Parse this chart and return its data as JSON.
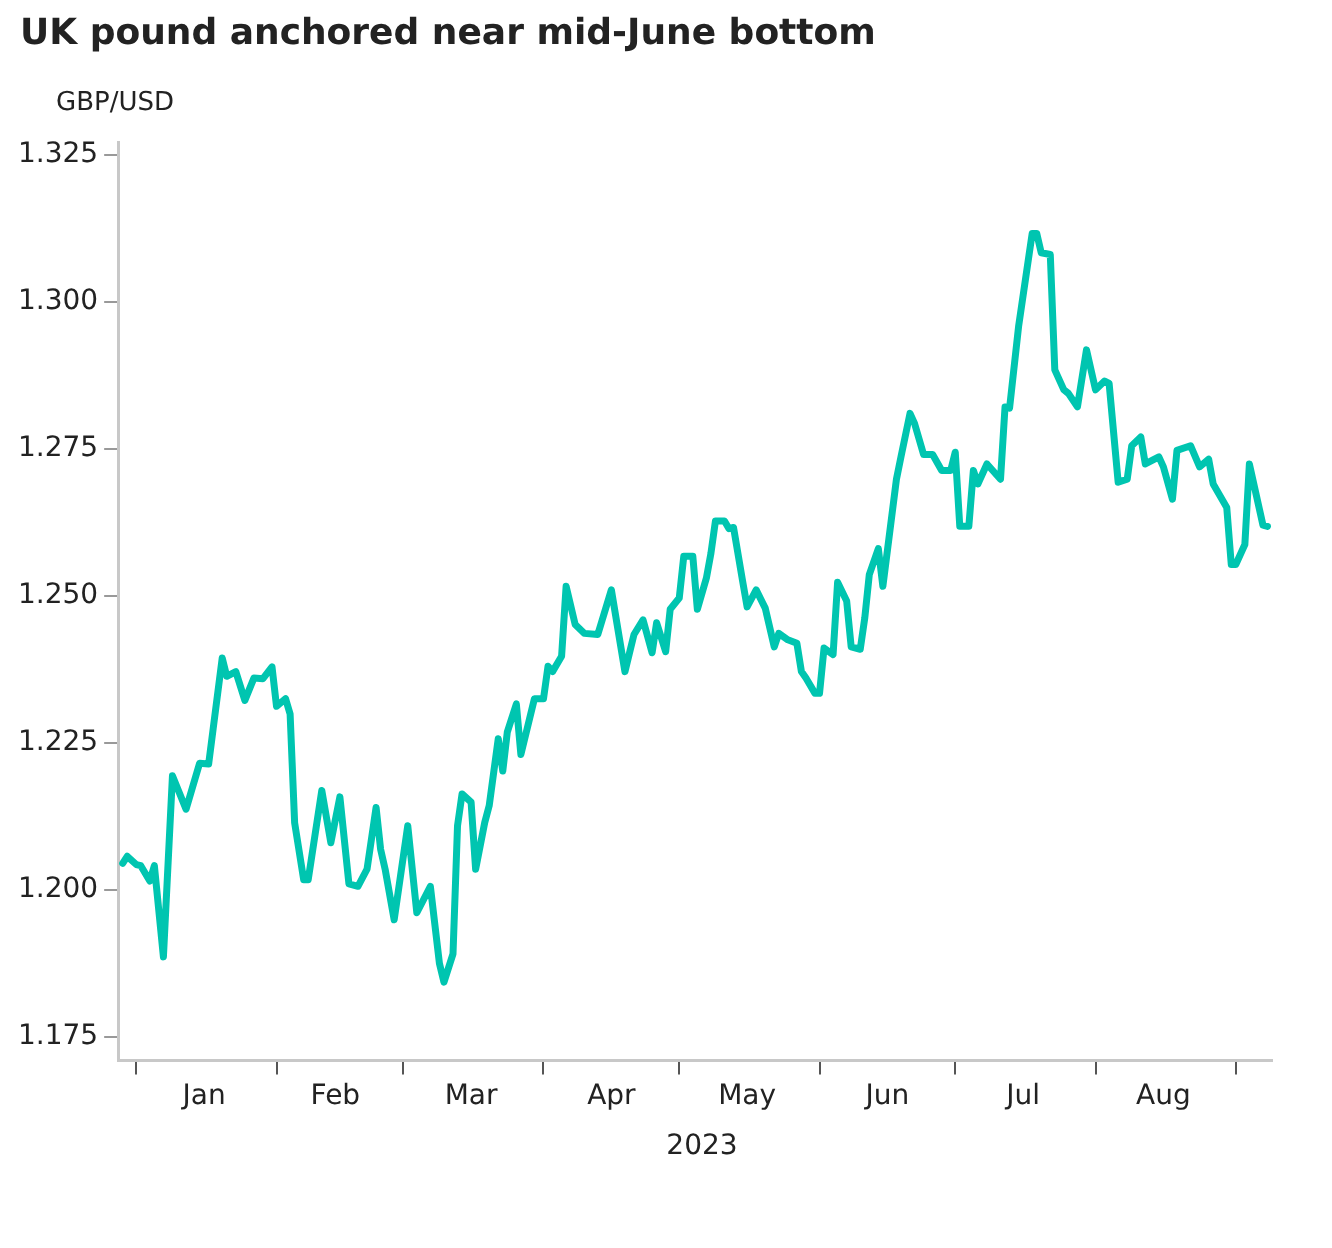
{
  "chart_data": {
    "type": "line",
    "title": "UK pound anchored near mid-June bottom",
    "ylabel": "GBP/USD",
    "xlabel": "2023",
    "x": [
      "2022-12-29",
      "2022-12-30",
      "2023-01-01",
      "2023-01-02",
      "2023-01-04",
      "2023-01-05",
      "2023-01-07",
      "2023-01-09",
      "2023-01-12",
      "2023-01-15",
      "2023-01-17",
      "2023-01-18",
      "2023-01-20",
      "2023-01-21",
      "2023-01-23",
      "2023-01-25",
      "2023-01-27",
      "2023-01-29",
      "2023-01-31",
      "2023-02-01",
      "2023-02-03",
      "2023-02-04",
      "2023-02-05",
      "2023-02-07",
      "2023-02-08",
      "2023-02-11",
      "2023-02-13",
      "2023-02-15",
      "2023-02-17",
      "2023-02-19",
      "2023-02-21",
      "2023-02-23",
      "2023-02-24",
      "2023-02-25",
      "2023-02-27",
      "2023-03-02",
      "2023-03-04",
      "2023-03-07",
      "2023-03-09",
      "2023-03-10",
      "2023-03-12",
      "2023-03-13",
      "2023-03-14",
      "2023-03-16",
      "2023-03-17",
      "2023-03-19",
      "2023-03-20",
      "2023-03-22",
      "2023-03-23",
      "2023-03-24",
      "2023-03-26",
      "2023-03-27",
      "2023-03-30",
      "2023-04-01",
      "2023-04-02",
      "2023-04-03",
      "2023-04-05",
      "2023-04-06",
      "2023-04-08",
      "2023-04-10",
      "2023-04-13",
      "2023-04-16",
      "2023-04-19",
      "2023-04-21",
      "2023-04-23",
      "2023-04-25",
      "2023-04-26",
      "2023-04-28",
      "2023-04-29",
      "2023-05-01",
      "2023-05-02",
      "2023-05-04",
      "2023-05-05",
      "2023-05-07",
      "2023-05-08",
      "2023-05-09",
      "2023-05-11",
      "2023-05-12",
      "2023-05-13",
      "2023-05-15",
      "2023-05-16",
      "2023-05-18",
      "2023-05-20",
      "2023-05-22",
      "2023-05-23",
      "2023-05-25",
      "2023-05-27",
      "2023-05-28",
      "2023-05-29",
      "2023-05-31",
      "2023-06-01",
      "2023-06-02",
      "2023-06-04",
      "2023-06-05",
      "2023-06-07",
      "2023-06-08",
      "2023-06-10",
      "2023-06-11",
      "2023-06-12",
      "2023-06-14",
      "2023-06-15",
      "2023-06-18",
      "2023-06-19",
      "2023-06-21",
      "2023-06-22",
      "2023-06-24",
      "2023-06-26",
      "2023-06-28",
      "2023-06-30",
      "2023-07-01",
      "2023-07-02",
      "2023-07-04",
      "2023-07-05",
      "2023-07-06",
      "2023-07-08",
      "2023-07-11",
      "2023-07-12",
      "2023-07-13",
      "2023-07-15",
      "2023-07-18",
      "2023-07-19",
      "2023-07-20",
      "2023-07-22",
      "2023-07-23",
      "2023-07-25",
      "2023-07-26",
      "2023-07-28",
      "2023-07-30",
      "2023-08-01",
      "2023-08-03",
      "2023-08-04",
      "2023-08-06",
      "2023-08-08",
      "2023-08-09",
      "2023-08-11",
      "2023-08-12",
      "2023-08-15",
      "2023-08-16",
      "2023-08-18",
      "2023-08-19",
      "2023-08-22",
      "2023-08-24",
      "2023-08-26",
      "2023-08-27",
      "2023-08-30",
      "2023-08-31",
      "2023-09-01",
      "2023-09-03",
      "2023-09-04",
      "2023-09-07",
      "2023-09-08"
    ],
    "series": [
      {
        "color": "#00c5b0",
        "values": [
          1.2045,
          1.2057,
          1.2043,
          1.2041,
          1.2015,
          1.2041,
          1.1886,
          1.2194,
          1.2137,
          1.2215,
          1.2214,
          1.2274,
          1.2394,
          1.2363,
          1.2371,
          1.2322,
          1.236,
          1.2359,
          1.2379,
          1.2312,
          1.2325,
          1.2299,
          1.2114,
          1.2017,
          1.2017,
          1.2169,
          1.208,
          1.2158,
          1.201,
          1.2006,
          1.2035,
          1.214,
          1.2069,
          1.2035,
          1.1949,
          1.2109,
          1.1961,
          1.2006,
          1.1875,
          1.1843,
          1.1891,
          1.2109,
          1.2163,
          1.2149,
          1.2035,
          1.2114,
          1.2143,
          1.2257,
          1.2202,
          1.2268,
          1.2316,
          1.223,
          1.2325,
          1.2325,
          1.238,
          1.2371,
          1.2397,
          1.2516,
          1.2451,
          1.2436,
          1.2434,
          1.251,
          1.2371,
          1.2434,
          1.2459,
          1.2403,
          1.2454,
          1.2405,
          1.2477,
          1.2496,
          1.2567,
          1.2567,
          1.2477,
          1.253,
          1.2572,
          1.2627,
          1.2627,
          1.2614,
          1.2616,
          1.2525,
          1.2481,
          1.251,
          1.2479,
          1.2413,
          1.2436,
          1.2425,
          1.2419,
          1.2371,
          1.236,
          1.2334,
          1.2334,
          1.2411,
          1.24,
          1.2523,
          1.2491,
          1.2413,
          1.2409,
          1.2462,
          1.2536,
          1.258,
          1.2516,
          1.2698,
          1.2736,
          1.281,
          1.2793,
          1.274,
          1.274,
          1.2713,
          1.2713,
          1.2744,
          1.2618,
          1.2618,
          1.2713,
          1.269,
          1.2724,
          1.2698,
          1.2821,
          1.2819,
          1.2958,
          1.3116,
          1.3116,
          1.3083,
          1.308,
          1.2884,
          1.285,
          1.2844,
          1.2821,
          1.2918,
          1.285,
          1.2865,
          1.2861,
          1.2693,
          1.2698,
          1.2755,
          1.277,
          1.2724,
          1.2736,
          1.2719,
          1.2664,
          1.2747,
          1.2755,
          1.2719,
          1.2732,
          1.269,
          1.265,
          1.2553,
          1.2553,
          1.2587,
          1.2724,
          1.262,
          1.2618
        ]
      }
    ],
    "xlim": [
      "2022-12-28",
      "2023-09-09"
    ],
    "xticks": [
      {
        "value": "2023-01-01",
        "label": null
      },
      {
        "value": "2023-01-16",
        "label": "Jan"
      },
      {
        "value": "2023-02-01",
        "label": null
      },
      {
        "value": "2023-02-14",
        "label": "Feb"
      },
      {
        "value": "2023-03-01",
        "label": null
      },
      {
        "value": "2023-03-16",
        "label": "Mar"
      },
      {
        "value": "2023-04-01",
        "label": null
      },
      {
        "value": "2023-04-16",
        "label": "Apr"
      },
      {
        "value": "2023-05-01",
        "label": null
      },
      {
        "value": "2023-05-16",
        "label": "May"
      },
      {
        "value": "2023-06-01",
        "label": null
      },
      {
        "value": "2023-06-16",
        "label": "Jun"
      },
      {
        "value": "2023-07-01",
        "label": null
      },
      {
        "value": "2023-07-16",
        "label": "Jul"
      },
      {
        "value": "2023-08-01",
        "label": null
      },
      {
        "value": "2023-08-16",
        "label": "Aug"
      },
      {
        "value": "2023-09-01",
        "label": null
      }
    ],
    "ylim": [
      1.171,
      1.327
    ],
    "yticks": [
      1.175,
      {
        "value": 1.2,
        "label": "1.200"
      },
      1.225,
      {
        "value": 1.25,
        "label": "1.250"
      },
      1.275,
      {
        "value": 1.3,
        "label": "1.300"
      },
      1.325
    ],
    "grid": false,
    "legend": false,
    "marker": "none",
    "line_style": "solid"
  }
}
